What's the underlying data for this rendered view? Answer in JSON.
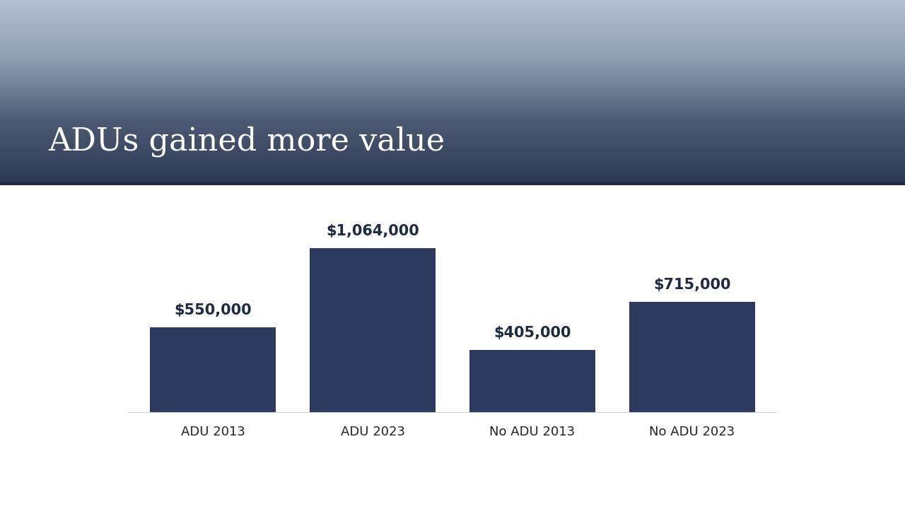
{
  "chart_data": {
    "type": "bar",
    "title": "ADUs gained more value",
    "categories": [
      "ADU 2013",
      "ADU 2023",
      "No ADU 2013",
      "No ADU 2023"
    ],
    "values": [
      550000,
      1064000,
      405000,
      715000
    ],
    "value_labels": [
      "$550,000",
      "$1,064,000",
      "$405,000",
      "$715,000"
    ],
    "color": "#2c3a60",
    "data_labels": true,
    "tick_labels": "x",
    "grid": false
  }
}
